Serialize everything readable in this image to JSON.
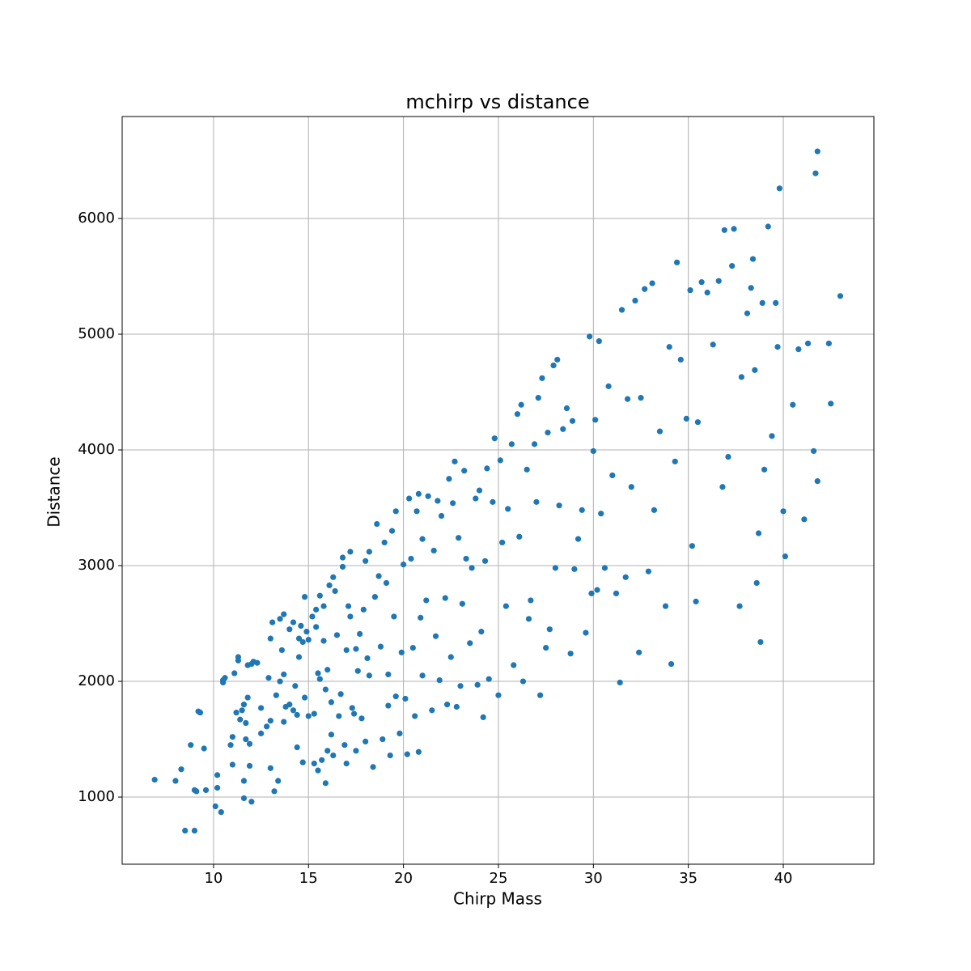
{
  "chart_data": {
    "type": "scatter",
    "title": "mchirp vs distance",
    "x_label": "Chirp Mass",
    "y_label": "Distance",
    "color": "#1f77b4",
    "grid": true,
    "xlim": [
      5.19,
      44.77
    ],
    "ylim": [
      420,
      6881
    ],
    "xticks": [
      10,
      15,
      20,
      25,
      30,
      35,
      40
    ],
    "yticks": [
      1000,
      2000,
      3000,
      4000,
      5000,
      6000
    ],
    "x": [
      6.9,
      8.0,
      8.3,
      8.5,
      8.8,
      9.0,
      9.0,
      9.1,
      9.2,
      9.3,
      9.5,
      9.6,
      10.1,
      10.2,
      10.2,
      10.4,
      10.5,
      10.5,
      10.6,
      10.9,
      11.0,
      11.0,
      11.1,
      11.2,
      11.3,
      11.3,
      11.4,
      11.5,
      11.6,
      11.6,
      11.6,
      11.7,
      11.7,
      11.8,
      11.8,
      11.9,
      11.9,
      12.0,
      12.0,
      12.1,
      12.3,
      12.5,
      12.5,
      12.8,
      12.9,
      13.0,
      13.0,
      13.0,
      13.1,
      13.2,
      13.3,
      13.4,
      13.5,
      13.5,
      13.6,
      13.7,
      13.7,
      13.7,
      13.8,
      14.0,
      14.0,
      14.2,
      14.2,
      14.3,
      14.4,
      14.4,
      14.5,
      14.5,
      14.6,
      14.7,
      14.7,
      14.8,
      14.8,
      14.9,
      15.0,
      15.0,
      15.2,
      15.3,
      15.3,
      15.4,
      15.4,
      15.5,
      15.5,
      15.6,
      15.6,
      15.7,
      15.8,
      15.8,
      15.9,
      15.9,
      16.0,
      16.0,
      16.1,
      16.2,
      16.2,
      16.3,
      16.3,
      16.4,
      16.5,
      16.6,
      16.7,
      16.8,
      16.8,
      16.9,
      17.0,
      17.0,
      17.1,
      17.2,
      17.2,
      17.3,
      17.4,
      17.5,
      17.5,
      17.6,
      17.7,
      17.8,
      17.9,
      18.0,
      18.0,
      18.1,
      18.2,
      18.2,
      18.4,
      18.5,
      18.6,
      18.7,
      18.8,
      18.9,
      19.0,
      19.1,
      19.2,
      19.2,
      19.3,
      19.4,
      19.5,
      19.6,
      19.6,
      19.8,
      19.9,
      20.0,
      20.1,
      20.2,
      20.3,
      20.4,
      20.5,
      20.6,
      20.7,
      20.8,
      20.8,
      20.9,
      21.0,
      21.0,
      21.2,
      21.3,
      21.5,
      21.6,
      21.7,
      21.8,
      21.9,
      22.0,
      22.2,
      22.3,
      22.4,
      22.5,
      22.6,
      22.7,
      22.8,
      22.9,
      23.0,
      23.1,
      23.2,
      23.3,
      23.5,
      23.6,
      23.8,
      23.9,
      24.0,
      24.1,
      24.2,
      24.3,
      24.4,
      24.5,
      24.7,
      24.8,
      25.0,
      25.1,
      25.2,
      25.4,
      25.5,
      25.7,
      25.8,
      26.0,
      26.1,
      26.2,
      26.3,
      26.5,
      26.6,
      26.7,
      26.9,
      27.0,
      27.1,
      27.2,
      27.3,
      27.5,
      27.6,
      27.7,
      27.9,
      28.0,
      28.1,
      28.2,
      28.4,
      28.6,
      28.8,
      28.9,
      29.0,
      29.2,
      29.4,
      29.6,
      29.8,
      29.9,
      30.0,
      30.1,
      30.2,
      30.3,
      30.4,
      30.6,
      30.8,
      31.0,
      31.2,
      31.4,
      31.5,
      31.7,
      31.8,
      32.0,
      32.2,
      32.4,
      32.5,
      32.7,
      32.9,
      33.1,
      33.2,
      33.5,
      33.8,
      34.0,
      34.1,
      34.3,
      34.4,
      34.6,
      34.9,
      35.1,
      35.2,
      35.4,
      35.5,
      35.7,
      36.0,
      36.3,
      36.6,
      36.8,
      36.9,
      37.1,
      37.3,
      37.4,
      37.7,
      37.8,
      38.1,
      38.3,
      38.4,
      38.5,
      38.6,
      38.7,
      38.8,
      38.9,
      39.0,
      39.2,
      39.4,
      39.6,
      39.7,
      39.8,
      40.0,
      40.1,
      40.5,
      40.8,
      41.1,
      41.3,
      41.6,
      41.7,
      41.8,
      41.8,
      42.4,
      42.5,
      43.0
    ],
    "values": [
      1150,
      1140,
      1240,
      710,
      1450,
      710,
      1060,
      1050,
      1740,
      1730,
      1420,
      1060,
      920,
      1190,
      1080,
      870,
      2010,
      1990,
      2030,
      1450,
      1520,
      1280,
      2070,
      1730,
      2180,
      2210,
      1670,
      1750,
      1800,
      1140,
      990,
      1500,
      1640,
      1860,
      2140,
      1460,
      1270,
      960,
      2150,
      2170,
      2160,
      1770,
      1550,
      1610,
      2030,
      2370,
      1250,
      1660,
      2510,
      1050,
      1880,
      1140,
      2540,
      2000,
      2270,
      2580,
      2060,
      1650,
      1780,
      2450,
      1800,
      2510,
      1750,
      1960,
      1710,
      1430,
      2370,
      2210,
      2480,
      1300,
      2340,
      1860,
      2730,
      2430,
      1700,
      2360,
      2560,
      1290,
      1720,
      2620,
      2470,
      2070,
      1230,
      2740,
      2020,
      1320,
      2650,
      2350,
      1120,
      1930,
      2100,
      1400,
      2830,
      1820,
      1540,
      2900,
      1360,
      2780,
      2400,
      1700,
      1890,
      3070,
      2990,
      1450,
      1290,
      2270,
      2650,
      3120,
      2560,
      1770,
      1720,
      1400,
      2280,
      2090,
      2410,
      1680,
      2620,
      3040,
      1480,
      2200,
      3120,
      2050,
      1260,
      2730,
      3360,
      2910,
      2300,
      1500,
      3200,
      2850,
      2060,
      1790,
      1360,
      3300,
      2560,
      3470,
      1870,
      1550,
      2250,
      3010,
      1850,
      1370,
      3580,
      3060,
      2290,
      1700,
      3470,
      3620,
      1390,
      2550,
      3230,
      2050,
      2700,
      3600,
      1750,
      3130,
      2390,
      3560,
      2010,
      3430,
      2720,
      1800,
      3750,
      2210,
      3540,
      3900,
      1780,
      3240,
      1960,
      2670,
      3820,
      3060,
      2330,
      2980,
      3580,
      1970,
      3650,
      2430,
      1690,
      3040,
      3840,
      2020,
      3550,
      4100,
      1880,
      3910,
      3200,
      2650,
      3490,
      4050,
      2140,
      4310,
      3250,
      4390,
      2000,
      3830,
      2540,
      2700,
      4050,
      3550,
      4450,
      1880,
      4620,
      2290,
      4150,
      2450,
      4730,
      2980,
      4780,
      3520,
      4180,
      4360,
      2240,
      4250,
      2970,
      3230,
      3480,
      2420,
      4980,
      2760,
      3990,
      4260,
      2790,
      4940,
      3450,
      2980,
      4550,
      3780,
      2760,
      1990,
      5210,
      2900,
      4440,
      3680,
      5290,
      2250,
      4450,
      5390,
      2950,
      5440,
      3480,
      4160,
      2650,
      4890,
      2150,
      3900,
      5620,
      4780,
      4270,
      5380,
      3170,
      2690,
      4240,
      5450,
      5360,
      4910,
      5460,
      3680,
      5900,
      3940,
      5590,
      5910,
      2650,
      4630,
      5180,
      5400,
      5650,
      4690,
      2850,
      3280,
      2340,
      5270,
      3830,
      5930,
      4120,
      5270,
      4890,
      6260,
      3470,
      3080,
      4390,
      4870,
      3400,
      4920,
      3990,
      6390,
      6580,
      3730,
      4920,
      4400,
      5330
    ]
  }
}
